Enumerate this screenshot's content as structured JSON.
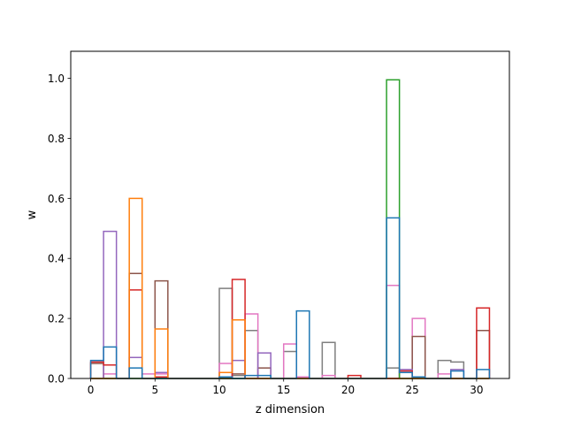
{
  "chart_data": {
    "type": "histogram-step",
    "title": "",
    "xlabel": "z dimension",
    "ylabel": "w",
    "xlim": [
      -1.55,
      32.55
    ],
    "ylim": [
      0,
      1.09
    ],
    "xticks": [
      0,
      5,
      10,
      15,
      20,
      25,
      30
    ],
    "yticks": [
      0.0,
      0.2,
      0.4,
      0.6,
      0.8,
      1.0
    ],
    "ytick_labels": [
      "0.0",
      "0.2",
      "0.4",
      "0.6",
      "0.8",
      "1.0"
    ],
    "bin_edges": [
      0,
      1,
      2,
      3,
      4,
      5,
      6,
      7,
      8,
      9,
      10,
      11,
      12,
      13,
      14,
      15,
      16,
      17,
      18,
      19,
      20,
      21,
      22,
      23,
      24,
      25,
      26,
      27,
      28,
      29,
      30,
      31
    ],
    "series": [
      {
        "color": "#1f77b4",
        "values": [
          0.06,
          0.105,
          0,
          0.035,
          0,
          0,
          0,
          0,
          0,
          0,
          0.005,
          0,
          0.01,
          0.01,
          0,
          0,
          0.225,
          0,
          0,
          0,
          0,
          0,
          0,
          0.535,
          0.02,
          0.005,
          0,
          0,
          0.025,
          0,
          0.03
        ]
      },
      {
        "color": "#ff7f0e",
        "values": [
          0,
          0,
          0,
          0.6,
          0,
          0.165,
          0,
          0,
          0,
          0,
          0.02,
          0.195,
          0,
          0,
          0,
          0,
          0,
          0,
          0,
          0,
          0,
          0,
          0,
          0,
          0,
          0,
          0,
          0,
          0,
          0,
          0
        ]
      },
      {
        "color": "#2ca02c",
        "values": [
          0,
          0,
          0,
          0,
          0,
          0,
          0,
          0,
          0,
          0,
          0,
          0,
          0,
          0,
          0,
          0,
          0,
          0,
          0,
          0,
          0,
          0,
          0,
          0.995,
          0,
          0,
          0,
          0,
          0,
          0,
          0
        ]
      },
      {
        "color": "#d62728",
        "values": [
          0.055,
          0.045,
          0,
          0.295,
          0,
          0.005,
          0,
          0,
          0,
          0,
          0,
          0.33,
          0,
          0,
          0,
          0,
          0,
          0,
          0,
          0,
          0.01,
          0,
          0,
          0,
          0.025,
          0,
          0,
          0,
          0,
          0,
          0.235
        ]
      },
      {
        "color": "#9467bd",
        "values": [
          0,
          0.49,
          0,
          0.07,
          0,
          0.02,
          0,
          0,
          0,
          0,
          0,
          0.06,
          0,
          0.085,
          0,
          0,
          0,
          0,
          0,
          0,
          0,
          0,
          0,
          0,
          0.03,
          0.005,
          0,
          0,
          0.03,
          0,
          0
        ]
      },
      {
        "color": "#8c564b",
        "values": [
          0.05,
          0,
          0,
          0.35,
          0,
          0.325,
          0,
          0,
          0,
          0,
          0,
          0.015,
          0,
          0.035,
          0,
          0,
          0,
          0,
          0,
          0,
          0,
          0,
          0,
          0,
          0,
          0.14,
          0,
          0,
          0,
          0,
          0.16
        ]
      },
      {
        "color": "#e377c2",
        "values": [
          0,
          0.015,
          0,
          0,
          0.015,
          0.015,
          0,
          0,
          0,
          0,
          0.05,
          0,
          0.215,
          0,
          0,
          0.115,
          0.005,
          0,
          0.01,
          0,
          0,
          0,
          0,
          0.31,
          0.02,
          0.2,
          0,
          0.015,
          0,
          0,
          0
        ]
      },
      {
        "color": "#7f7f7f",
        "values": [
          0,
          0,
          0,
          0,
          0,
          0,
          0,
          0,
          0,
          0,
          0.3,
          0.01,
          0.16,
          0,
          0,
          0.09,
          0,
          0,
          0.12,
          0,
          0,
          0,
          0,
          0.035,
          0,
          0,
          0,
          0.06,
          0.055,
          0,
          0
        ]
      },
      {
        "color": "#bcbd22",
        "values": [
          0,
          0,
          0,
          0,
          0,
          0,
          0,
          0,
          0,
          0,
          0,
          0,
          0,
          0,
          0,
          0,
          0,
          0,
          0,
          0,
          0,
          0,
          0,
          0,
          0,
          0,
          0,
          0,
          0,
          0,
          0
        ]
      },
      {
        "color": "#17becf",
        "values": [
          0,
          0,
          0,
          0,
          0,
          0,
          0,
          0,
          0,
          0,
          0,
          0,
          0,
          0,
          0,
          0,
          0,
          0,
          0,
          0,
          0,
          0,
          0,
          0,
          0,
          0,
          0,
          0,
          0,
          0,
          0
        ]
      }
    ],
    "stacking_order": [
      8,
      9,
      7,
      6,
      5,
      4,
      3,
      2,
      1,
      0
    ],
    "grid": false,
    "legend": "none"
  }
}
